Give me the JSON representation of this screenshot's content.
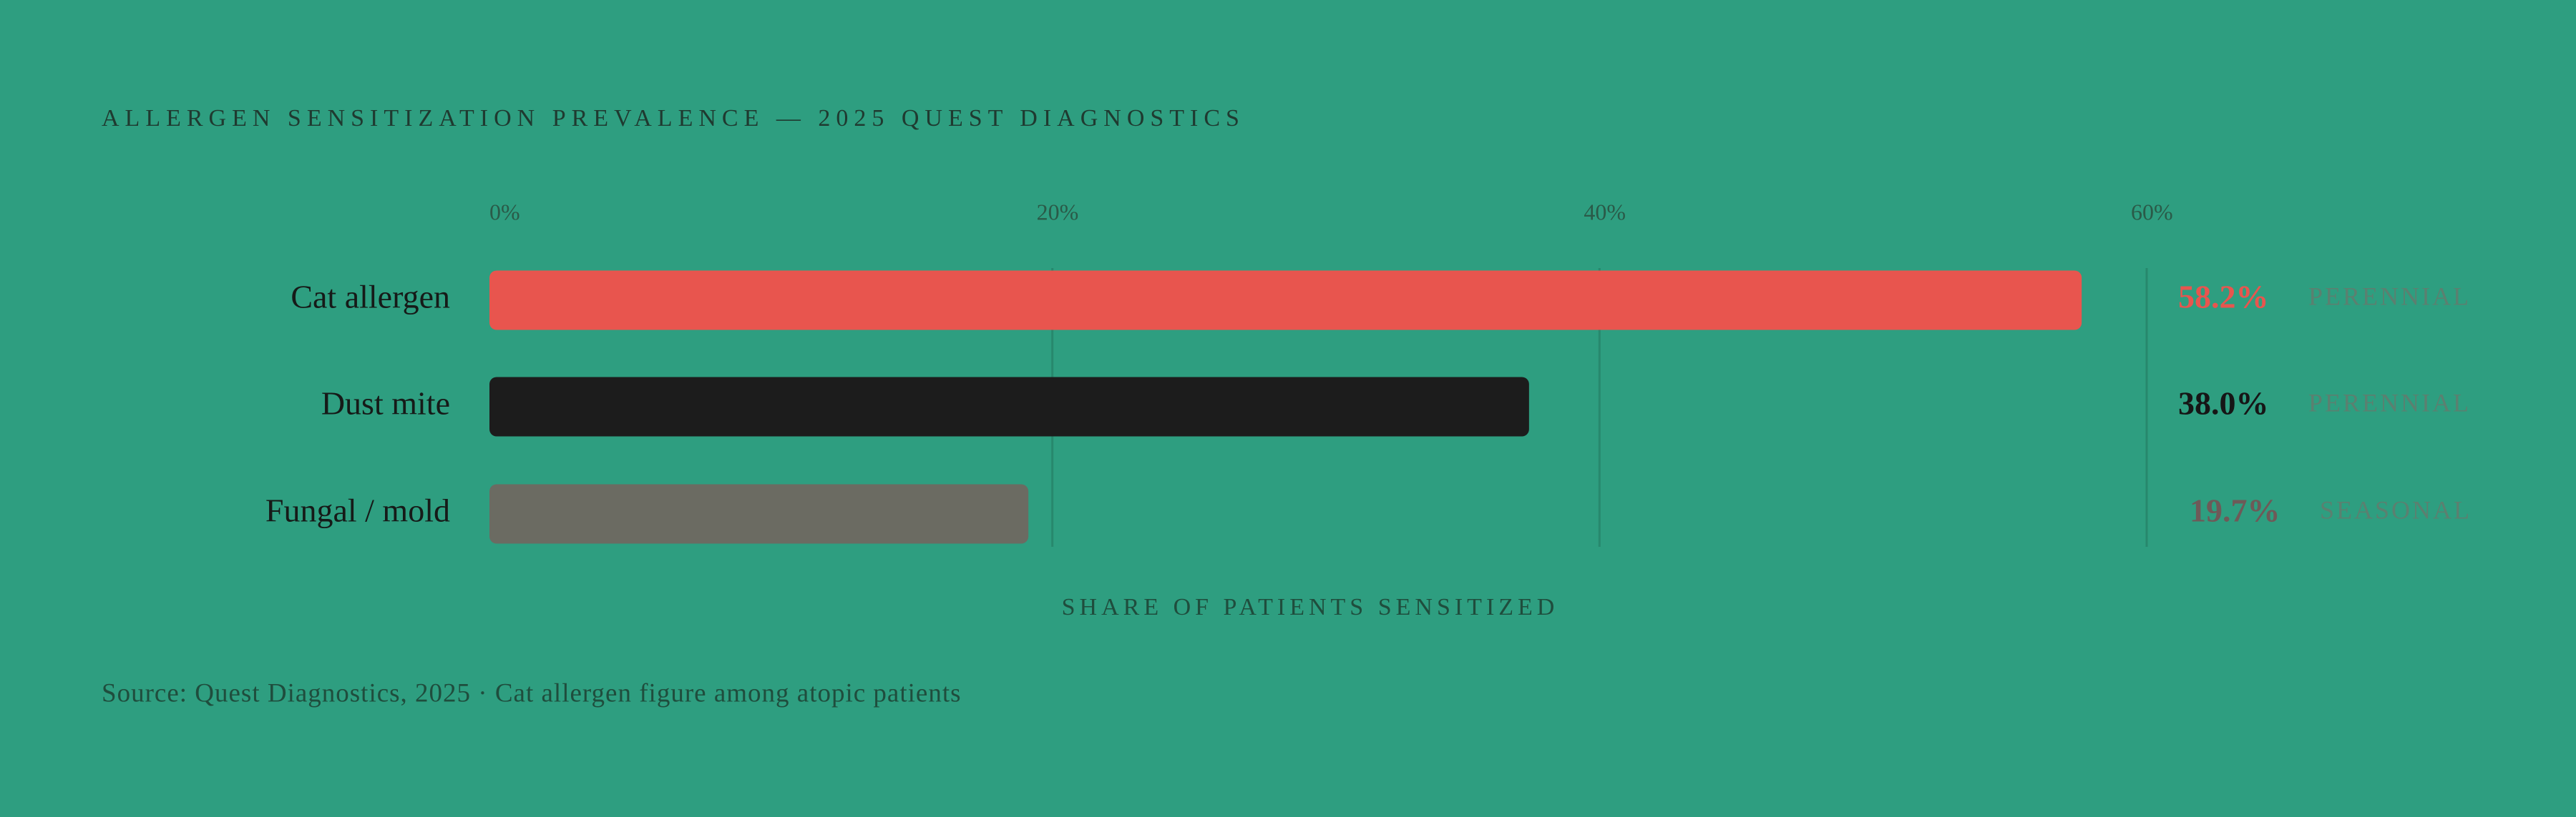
{
  "chart_data": {
    "type": "bar",
    "orientation": "horizontal",
    "title": "ALLERGEN SENSITIZATION PREVALENCE — 2025 QUEST DIAGNOSTICS",
    "categories": [
      "Cat allergen",
      "Dust mite",
      "Fungal / mold"
    ],
    "values": [
      58.2,
      38.0,
      19.7
    ],
    "value_labels": [
      "58.2%",
      "38.0%",
      "19.7%"
    ],
    "colors": [
      "#e8554e",
      "#1c1c1c",
      "#6b6b62"
    ],
    "value_label_colors": [
      "#e8554e",
      "#161616",
      "#6e5a58"
    ],
    "tags": [
      "PERENNIAL",
      "PERENNIAL",
      "SEASONAL"
    ],
    "xlim": [
      0,
      60
    ],
    "xticks": [
      {
        "value": 0,
        "label": "0%"
      },
      {
        "value": 20,
        "label": "20%"
      },
      {
        "value": 40,
        "label": "40%"
      },
      {
        "value": 60,
        "label": "60%"
      }
    ],
    "grid": true,
    "xlabel": "SHARE OF PATIENTS SENSITIZED",
    "source": "Source: Quest Diagnostics, 2025 · Cat allergen figure among atopic patients"
  }
}
